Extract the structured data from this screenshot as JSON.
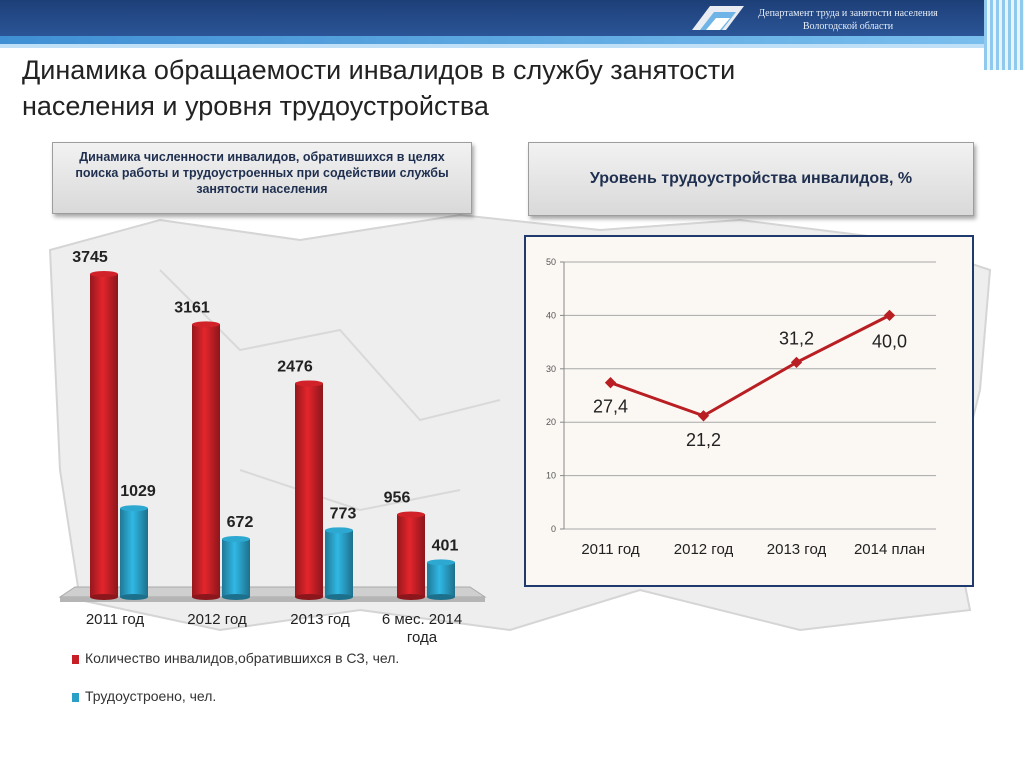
{
  "header": {
    "department_line1": "Департамент труда и занятости населения",
    "department_line2": "Вологодской области"
  },
  "page": {
    "title_line1": "Динамика обращаемости инвалидов в службу занятости",
    "title_line2": "населения и уровня трудоустройства"
  },
  "panels": {
    "left_title": "Динамика численности инвалидов, обратившихся в целях поиска работы и трудоустроенных при содействии службы занятости населения",
    "right_title": "Уровень трудоустройства инвалидов, %"
  },
  "colors": {
    "red_series": "#c62026",
    "blue_series": "#2aa0c7",
    "line_series": "#b81e22"
  },
  "chart_data": [
    {
      "type": "bar",
      "categories": [
        "2011 год",
        "2012 год",
        "2013 год",
        "6 мес. 2014 года"
      ],
      "series": [
        {
          "name": "Количество инвалидов,обратившихся в СЗ, чел.",
          "values": [
            3745,
            3161,
            2476,
            956
          ]
        },
        {
          "name": "Трудоустроено, чел.",
          "values": [
            1029,
            672,
            773,
            401
          ]
        }
      ],
      "data_labels": [
        [
          "3745",
          "3161",
          "2476",
          "956"
        ],
        [
          "1029",
          "672",
          "773",
          "401"
        ]
      ],
      "legend_position": "bottom",
      "ylim": [
        0,
        4000
      ]
    },
    {
      "type": "line",
      "categories": [
        "2011 год",
        "2012 год",
        "2013 год",
        "2014 план"
      ],
      "values": [
        27.4,
        21.2,
        31.2,
        40.0
      ],
      "data_labels": [
        "27,4",
        "21,2",
        "31,2",
        "40,0"
      ],
      "yticks": [
        0,
        10,
        20,
        30,
        40,
        50
      ],
      "ylim": [
        0,
        50
      ],
      "grid": true
    }
  ]
}
